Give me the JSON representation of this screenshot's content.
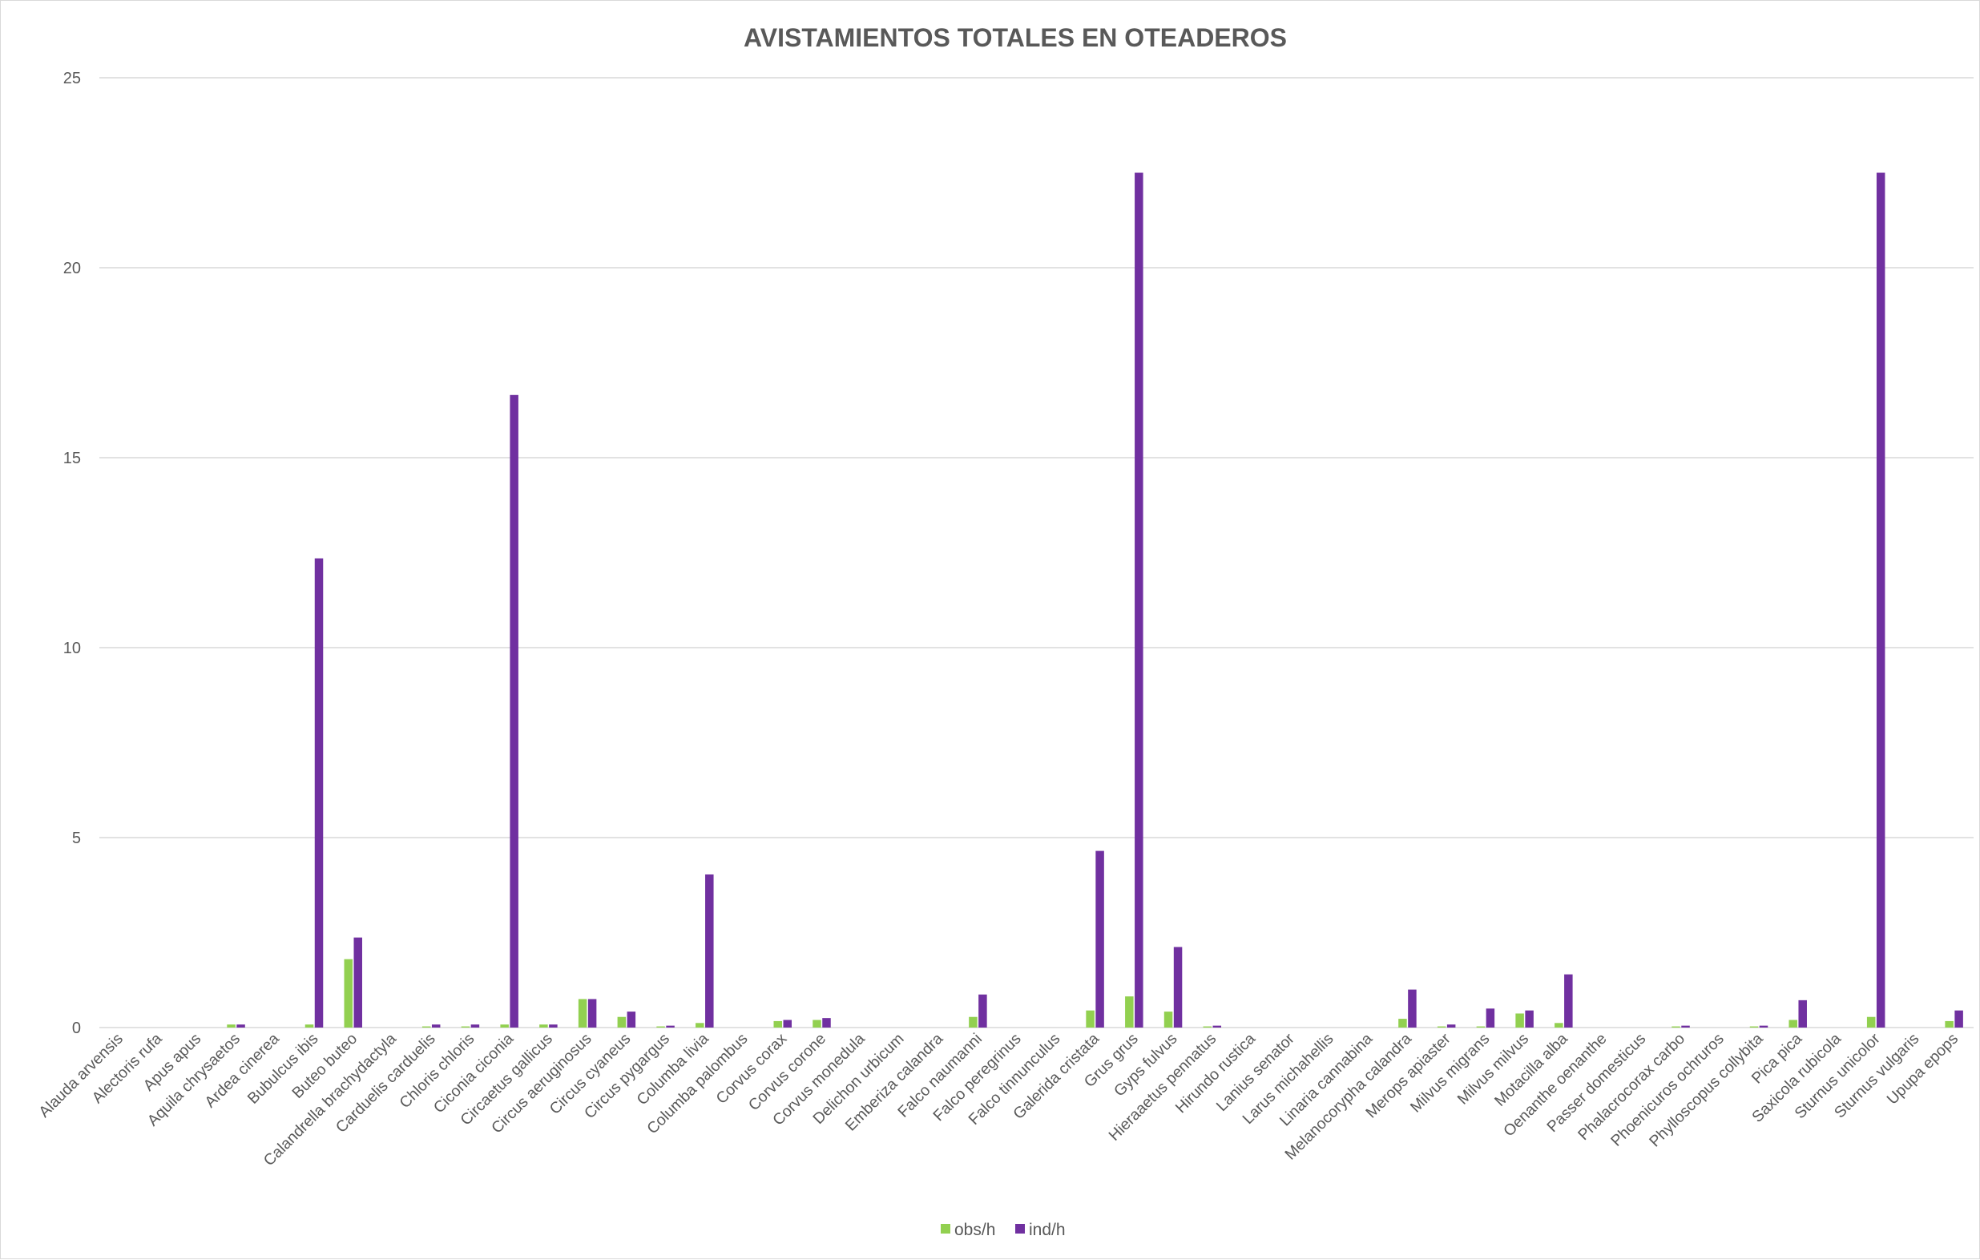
{
  "chart_data": {
    "type": "bar",
    "title": "AVISTAMIENTOS TOTALES EN OTEADEROS",
    "xlabel": "",
    "ylabel": "",
    "ylim": [
      0,
      25
    ],
    "yticks": [
      "0",
      "5",
      "10",
      "15",
      "20",
      "25"
    ],
    "grid": true,
    "legend_position": "bottom",
    "categories": [
      "Alauda arvensis",
      "Alectoris rufa",
      "Apus apus",
      "Aquila chrysaetos",
      "Ardea cinerea",
      "Bubulcus ibis",
      "Buteo buteo",
      "Calandrella brachydactyla",
      "Carduelis carduelis",
      "Chloris chloris",
      "Ciconia ciconia",
      "Circaetus gallicus",
      "Circus aeruginosus",
      "Circus cyaneus",
      "Circus pygargus",
      "Columba livia",
      "Columba palombus",
      "Corvus corax",
      "Corvus corone",
      "Corvus monedula",
      "Delichon urbicum",
      "Emberiza calandra",
      "Falco naumanni",
      "Falco peregrinus",
      "Falco tinnunculus",
      "Galerida cristata",
      "Grus grus",
      "Gyps fulvus",
      "Hieraaetus pennatus",
      "Hirundo rustica",
      "Lanius senator",
      "Larus michahellis",
      "Linaria cannabina",
      "Melanocorypha calandra",
      "Merops apiaster",
      "Milvus migrans",
      "Milvus milvus",
      "Motacilla alba",
      "Oenanthe oenanthe",
      "Passer domesticus",
      "Phalacrocorax carbo",
      "Phoenicuros ochruros",
      "Phylloscopus collybita",
      "Pica pica",
      "Saxicola rubicola",
      "Sturnus unicolor",
      "Sturnus vulgaris",
      "Upupa epops"
    ],
    "series": [
      {
        "name": "obs/h",
        "color": "#92d050",
        "values": [
          0,
          0,
          0,
          0.08,
          0,
          0.08,
          1.8,
          0,
          0.03,
          0.03,
          0.08,
          0.08,
          0.75,
          0.28,
          0.03,
          0.12,
          0,
          0.17,
          0.2,
          0,
          0,
          0,
          0.28,
          0,
          0,
          0.45,
          0.82,
          0.42,
          0.03,
          0,
          0,
          0,
          0,
          0.23,
          0.03,
          0.03,
          0.37,
          0.12,
          0,
          0,
          0.03,
          0,
          0.03,
          0.2,
          0,
          0.28,
          0,
          0.17
        ]
      },
      {
        "name": "ind/h",
        "color": "#7030a0",
        "values": [
          0,
          0,
          0,
          0.08,
          0,
          12.35,
          2.37,
          0,
          0.08,
          0.08,
          16.65,
          0.08,
          0.75,
          0.42,
          0.05,
          4.03,
          0,
          0.2,
          0.25,
          0,
          0,
          0,
          0.87,
          0,
          0,
          4.65,
          22.5,
          2.12,
          0.05,
          0,
          0,
          0,
          0,
          1.0,
          0.08,
          0.5,
          0.45,
          1.4,
          0,
          0,
          0.05,
          0,
          0.05,
          0.72,
          0,
          22.5,
          0,
          0.45
        ]
      }
    ]
  }
}
